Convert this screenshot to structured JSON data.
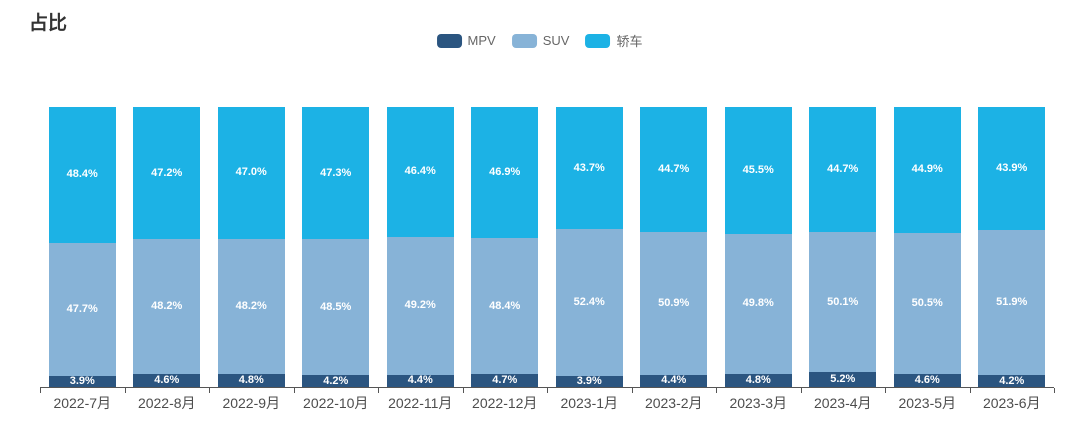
{
  "title": "占比",
  "chart_data": {
    "type": "bar",
    "stacked": true,
    "percent_stack": true,
    "unit": "%",
    "title": "占比",
    "xlabel": "",
    "ylabel": "",
    "ylim": [
      0,
      100
    ],
    "grid": false,
    "legend_position": "top-center",
    "categories": [
      "2022-7月",
      "2022-8月",
      "2022-9月",
      "2022-10月",
      "2022-11月",
      "2022-12月",
      "2023-1月",
      "2023-2月",
      "2023-3月",
      "2023-4月",
      "2023-5月",
      "2023-6月"
    ],
    "series": [
      {
        "name": "MPV",
        "color": "#2B5580",
        "values": [
          3.9,
          4.6,
          4.8,
          4.2,
          4.4,
          4.7,
          3.9,
          4.4,
          4.8,
          5.2,
          4.6,
          4.2
        ]
      },
      {
        "name": "SUV",
        "color": "#87B3D7",
        "values": [
          47.7,
          48.2,
          48.2,
          48.5,
          49.2,
          48.4,
          52.4,
          50.9,
          49.8,
          50.1,
          50.5,
          51.9
        ]
      },
      {
        "name": "轿车",
        "color": "#1CB2E5",
        "values": [
          48.4,
          47.2,
          47.0,
          47.3,
          46.4,
          46.9,
          43.7,
          44.7,
          45.5,
          44.7,
          44.9,
          43.9
        ]
      }
    ]
  }
}
